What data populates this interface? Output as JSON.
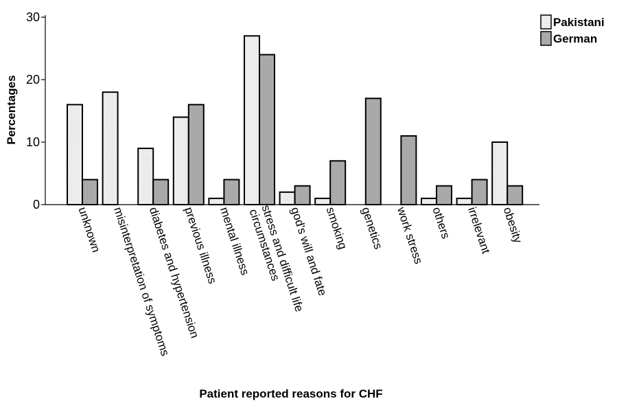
{
  "chart_data": {
    "type": "bar",
    "title": "",
    "xlabel": "Patient reported reasons for CHF",
    "ylabel": "Percentages",
    "ylim": [
      0,
      30
    ],
    "yticks": [
      0,
      10,
      20,
      30
    ],
    "grid": false,
    "legend_position": "top-right",
    "categories": [
      [
        "unknown"
      ],
      [
        "misinterpretation of symptoms"
      ],
      [
        "diabetes and hypertension"
      ],
      [
        "previous illness"
      ],
      [
        "mental illness"
      ],
      [
        "stress and difficult life",
        "circumstances"
      ],
      [
        "god's will and fate"
      ],
      [
        "smoking"
      ],
      [
        "genetics"
      ],
      [
        "work stress"
      ],
      [
        "others"
      ],
      [
        "irrelevant"
      ],
      [
        "obesity"
      ]
    ],
    "series": [
      {
        "name": "Pakistani",
        "color": "#efefef",
        "values": [
          16,
          18,
          9,
          14,
          1,
          27,
          2,
          1,
          0,
          0,
          1,
          1,
          10
        ]
      },
      {
        "name": "German",
        "color": "#a9a9a9",
        "values": [
          4,
          0,
          4,
          16,
          4,
          24,
          3,
          7,
          17,
          11,
          3,
          4,
          3
        ]
      }
    ]
  }
}
